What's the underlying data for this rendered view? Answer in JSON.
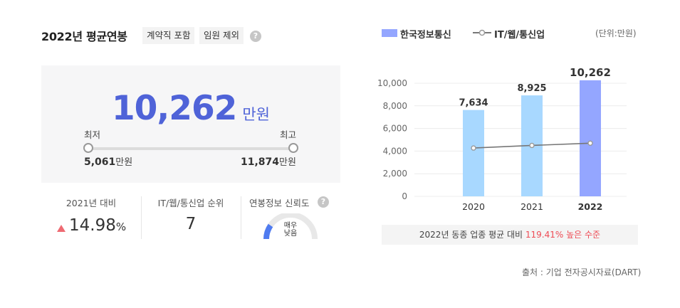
{
  "left": {
    "title": "2022년 평균연봉",
    "tags": [
      "계약직 포함",
      "임원 제외"
    ],
    "help_icon": "question-circle-icon",
    "average": {
      "value": "10,262",
      "unit": "만원"
    },
    "range": {
      "min_label": "최저",
      "max_label": "최고",
      "min_value": "5,061",
      "max_value": "11,874",
      "unit": "만원"
    },
    "stats": {
      "yoy_label": "2021년 대비",
      "yoy_value": "14.98",
      "yoy_unit": "%",
      "yoy_direction": "up",
      "rank_label": "IT/웹/통신업 순위",
      "rank_value": "7",
      "reliability_label": "연봉정보 신뢰도",
      "reliability_value": "매우\n낮음"
    }
  },
  "right": {
    "legend_bar": "한국정보통신",
    "legend_line": "IT/웹/통신업",
    "unit_note": "(단위:만원)",
    "footer_prefix": "2022년 동종 업종 평균 대비",
    "footer_highlight": "119.41% 높은 수준",
    "source": "출처 : 기업 전자공시자료(DART)"
  },
  "colors": {
    "accent": "#4f63d8",
    "bar": "#a8d8ff",
    "bar_highlight": "#94a6ff",
    "line": "#777777",
    "up": "#ee6a72"
  },
  "chart_data": {
    "type": "bar",
    "categories": [
      "2020",
      "2021",
      "2022"
    ],
    "series": [
      {
        "name": "한국정보통신",
        "type": "bar",
        "values": [
          7634,
          8925,
          10262
        ],
        "labels": [
          "7,634",
          "8,925",
          "10,262"
        ]
      },
      {
        "name": "IT/웹/통신업",
        "type": "line",
        "values": [
          4270,
          4500,
          4700
        ]
      }
    ],
    "yticks": [
      "0",
      "2,000",
      "4,000",
      "6,000",
      "8,000",
      "10,000"
    ],
    "ylim": [
      0,
      10000
    ],
    "legend_position": "top-left"
  }
}
